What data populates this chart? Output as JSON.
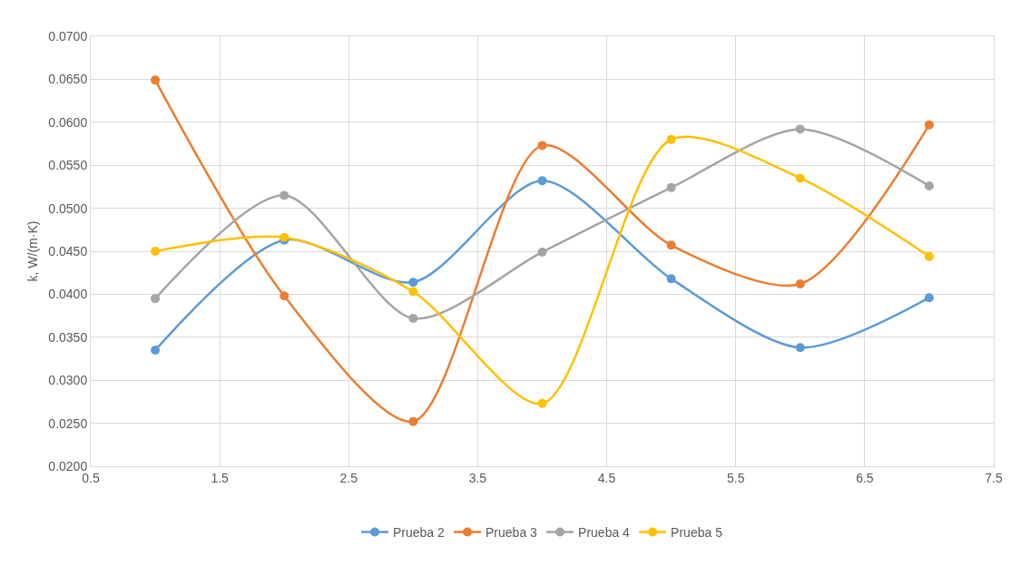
{
  "chart_data": {
    "type": "line",
    "ylabel": "k, W/(m·K)",
    "x": [
      1,
      2,
      3,
      4,
      5,
      6,
      7
    ],
    "series": [
      {
        "name": "Prueba 2",
        "color": "#5b9bd5",
        "values": [
          0.0335,
          0.0463,
          0.0414,
          0.0532,
          0.0418,
          0.0338,
          0.0396
        ]
      },
      {
        "name": "Prueba 3",
        "color": "#ed7d31",
        "values": [
          0.0649,
          0.0398,
          0.0252,
          0.0573,
          0.0457,
          0.0412,
          0.0597
        ]
      },
      {
        "name": "Prueba 4",
        "color": "#a5a5a5",
        "values": [
          0.0395,
          0.0515,
          0.0372,
          0.0449,
          0.0524,
          0.0592,
          0.0526
        ]
      },
      {
        "name": "Prueba 5",
        "color": "#ffc000",
        "values": [
          0.045,
          0.0466,
          0.0403,
          0.0273,
          0.058,
          0.0535,
          0.0444
        ]
      }
    ],
    "xlim": [
      0.5,
      7.5
    ],
    "xticks": [
      0.5,
      1.5,
      2.5,
      3.5,
      4.5,
      5.5,
      6.5,
      7.5
    ],
    "ylim": [
      0.02,
      0.07
    ],
    "yticks": [
      {
        "value": 0.02,
        "label": "0.0200"
      },
      {
        "value": 0.025,
        "label": "0.0250"
      },
      {
        "value": 0.03,
        "label": "0.0300"
      },
      {
        "value": 0.035,
        "label": "0.0350"
      },
      {
        "value": 0.04,
        "label": "0.0400"
      },
      {
        "value": 0.045,
        "label": "0.0450"
      },
      {
        "value": 0.05,
        "label": "0.0500"
      },
      {
        "value": 0.055,
        "label": "0.0550"
      },
      {
        "value": 0.06,
        "label": "0.0600"
      },
      {
        "value": 0.065,
        "label": "0.0650"
      },
      {
        "value": 0.07,
        "label": "0.0700"
      }
    ],
    "grid": true,
    "legend": "bottom",
    "marker": "circle",
    "line_style": "solid"
  }
}
